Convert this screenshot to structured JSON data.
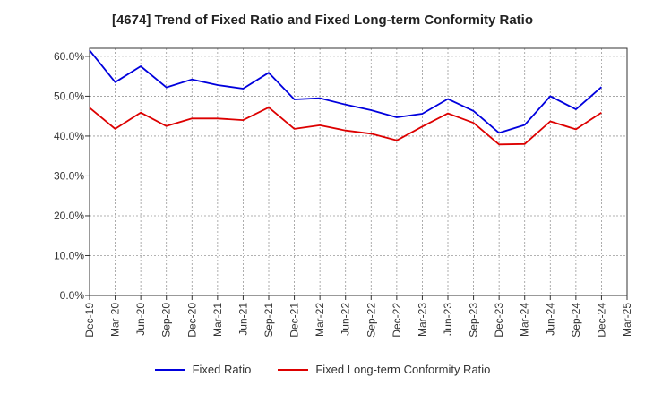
{
  "chart_data": {
    "type": "line",
    "title": "[4674]  Trend of Fixed Ratio and Fixed Long-term Conformity Ratio",
    "xlabel": "",
    "ylabel": "",
    "ylim": [
      0,
      62
    ],
    "y_ticks": [
      "0.0%",
      "10.0%",
      "20.0%",
      "30.0%",
      "40.0%",
      "50.0%",
      "60.0%"
    ],
    "y_tick_values": [
      0,
      10,
      20,
      30,
      40,
      50,
      60
    ],
    "grid": true,
    "legend_position": "bottom",
    "categories": [
      "Dec-19",
      "Mar-20",
      "Jun-20",
      "Sep-20",
      "Dec-20",
      "Mar-21",
      "Jun-21",
      "Sep-21",
      "Dec-21",
      "Mar-22",
      "Jun-22",
      "Sep-22",
      "Dec-22",
      "Mar-23",
      "Jun-23",
      "Sep-23",
      "Dec-23",
      "Mar-24",
      "Jun-24",
      "Sep-24",
      "Dec-24",
      "Mar-25"
    ],
    "series": [
      {
        "name": "Fixed Ratio",
        "color": "#0000dd",
        "values": [
          61.5,
          53.5,
          57.5,
          52.2,
          54.2,
          52.8,
          51.9,
          55.9,
          49.2,
          49.5,
          47.9,
          46.5,
          44.7,
          45.6,
          49.3,
          46.3,
          40.8,
          42.8,
          50.0,
          46.7,
          52.3,
          null
        ]
      },
      {
        "name": "Fixed Long-term Conformity Ratio",
        "color": "#dd0000",
        "values": [
          47.1,
          41.8,
          45.9,
          42.5,
          44.4,
          44.4,
          44.0,
          47.2,
          41.8,
          42.7,
          41.4,
          40.6,
          38.9,
          42.4,
          45.7,
          43.3,
          37.9,
          38.0,
          43.7,
          41.7,
          45.9,
          null
        ]
      }
    ]
  }
}
